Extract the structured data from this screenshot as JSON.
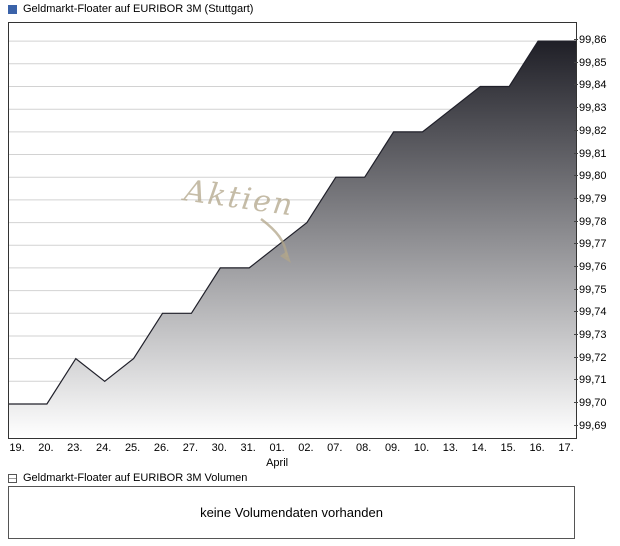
{
  "header": {
    "price_legend": "Geldmarkt-Floater auf EURIBOR 3M (Stuttgart)",
    "price_legend_color": "#3a62a9"
  },
  "watermark": "Aktien",
  "volume": {
    "legend": "Geldmarkt-Floater auf EURIBOR 3M Volumen",
    "empty_message": "keine Volumendaten vorhanden"
  },
  "chart_data": {
    "type": "area",
    "title": "Geldmarkt-Floater auf EURIBOR 3M (Stuttgart)",
    "x": [
      "19.",
      "20.",
      "23.",
      "24.",
      "25.",
      "26.",
      "27.",
      "30.",
      "31.",
      "01.",
      "02.",
      "07.",
      "08.",
      "09.",
      "10.",
      "13.",
      "14.",
      "15.",
      "16.",
      "17."
    ],
    "month_label": "April",
    "month_label_index": 9,
    "values": [
      99.7,
      99.7,
      99.72,
      99.71,
      99.72,
      99.74,
      99.74,
      99.76,
      99.76,
      99.77,
      99.78,
      99.8,
      99.8,
      99.82,
      99.82,
      99.83,
      99.84,
      99.84,
      99.86,
      99.86
    ],
    "yticks": [
      99.69,
      99.7,
      99.71,
      99.72,
      99.73,
      99.74,
      99.75,
      99.76,
      99.77,
      99.78,
      99.79,
      99.8,
      99.81,
      99.82,
      99.83,
      99.84,
      99.85,
      99.86
    ],
    "ylim": [
      99.685,
      99.868
    ],
    "decimal_separator": ",",
    "grid": "horizontal",
    "legend_position": "top-left",
    "area_gradient": [
      "#15151d",
      "#ffffff"
    ],
    "line_color": "#20202a"
  }
}
